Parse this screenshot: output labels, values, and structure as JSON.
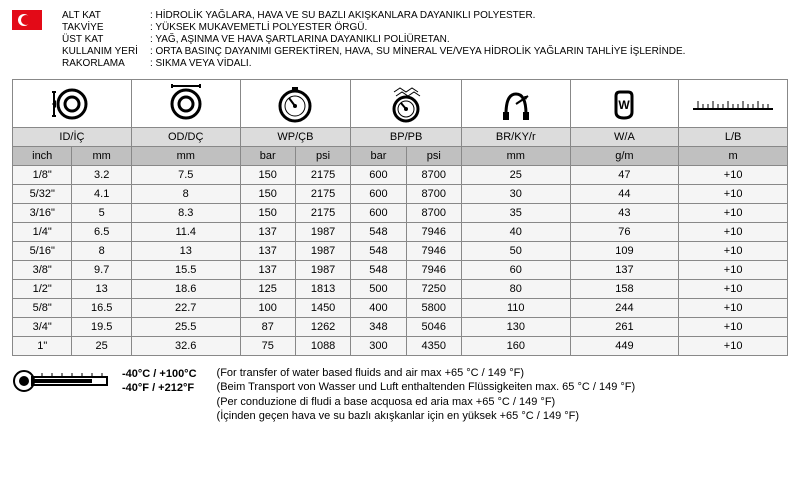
{
  "specs": [
    {
      "label": "ALT KAT",
      "value": "HİDROLİK YAĞLARA, HAVA VE SU BAZLI  AKIŞKANLARA DAYANIKLI POLYESTER."
    },
    {
      "label": "TAKVİYE",
      "value": "YÜKSEK MUKAVEMETLİ POLYESTER ÖRGÜ."
    },
    {
      "label": "ÜST KAT",
      "value": "YAĞ, AŞINMA VE HAVA ŞARTLARINA DAYANIKLI POLİÜRETAN."
    },
    {
      "label": "KULLANIM YERİ",
      "value": "ORTA BASINÇ DAYANIMI GEREKTİREN, HAVA, SU MİNERAL VE/VEYA HİDROLİK YAĞLARIN TAHLİYE İŞLERİNDE."
    },
    {
      "label": "RAKORLAMA",
      "value": "SIKMA VEYA VİDALI."
    }
  ],
  "column_groups": [
    {
      "label": "ID/İÇ",
      "span": 2,
      "units": [
        "inch",
        "mm"
      ]
    },
    {
      "label": "OD/DÇ",
      "span": 1,
      "units": [
        "mm"
      ]
    },
    {
      "label": "WP/ÇB",
      "span": 2,
      "units": [
        "bar",
        "psi"
      ]
    },
    {
      "label": "BP/PB",
      "span": 2,
      "units": [
        "bar",
        "psi"
      ]
    },
    {
      "label": "BR/KY/r",
      "span": 1,
      "units": [
        "mm"
      ]
    },
    {
      "label": "W/A",
      "span": 1,
      "units": [
        "g/m"
      ]
    },
    {
      "label": "L/B",
      "span": 1,
      "units": [
        "m"
      ]
    }
  ],
  "rows": [
    [
      "1/8\"",
      "3.2",
      "7.5",
      "150",
      "2175",
      "600",
      "8700",
      "25",
      "47",
      "+10"
    ],
    [
      "5/32\"",
      "4.1",
      "8",
      "150",
      "2175",
      "600",
      "8700",
      "30",
      "44",
      "+10"
    ],
    [
      "3/16\"",
      "5",
      "8.3",
      "150",
      "2175",
      "600",
      "8700",
      "35",
      "43",
      "+10"
    ],
    [
      "1/4\"",
      "6.5",
      "11.4",
      "137",
      "1987",
      "548",
      "7946",
      "40",
      "76",
      "+10"
    ],
    [
      "5/16\"",
      "8",
      "13",
      "137",
      "1987",
      "548",
      "7946",
      "50",
      "109",
      "+10"
    ],
    [
      "3/8\"",
      "9.7",
      "15.5",
      "137",
      "1987",
      "548",
      "7946",
      "60",
      "137",
      "+10"
    ],
    [
      "1/2\"",
      "13",
      "18.6",
      "125",
      "1813",
      "500",
      "7250",
      "80",
      "158",
      "+10"
    ],
    [
      "5/8\"",
      "16.5",
      "22.7",
      "100",
      "1450",
      "400",
      "5800",
      "110",
      "244",
      "+10"
    ],
    [
      "3/4\"",
      "19.5",
      "25.5",
      "87",
      "1262",
      "348",
      "5046",
      "130",
      "261",
      "+10"
    ],
    [
      "1\"",
      "25",
      "32.6",
      "75",
      "1088",
      "300",
      "4350",
      "160",
      "449",
      "+10"
    ]
  ],
  "temp": {
    "line1": "-40°C / +100°C",
    "line2": "-40°F / +212°F"
  },
  "notes": [
    "(For transfer of water based fluids and air max +65 °C / 149 °F)",
    "(Beim Transport von Wasser und Luft enthaltenden Flüssigkeiten max. 65 °C /  149 °F)",
    "(Per conduzione di fludi a base acquosa ed aria max +65 °C / 149 °F)",
    "(İçinden geçen hava ve su bazlı akışkanlar için en yüksek +65 °C / 149 °F)"
  ],
  "col_widths": [
    "58",
    "58",
    "106",
    "54",
    "54",
    "54",
    "54",
    "106",
    "106",
    "106"
  ],
  "colors": {
    "header_bg": "#dcdcdc",
    "unit_bg": "#c0c0c0",
    "data_bg": "#f5f5f5",
    "border": "#888"
  }
}
